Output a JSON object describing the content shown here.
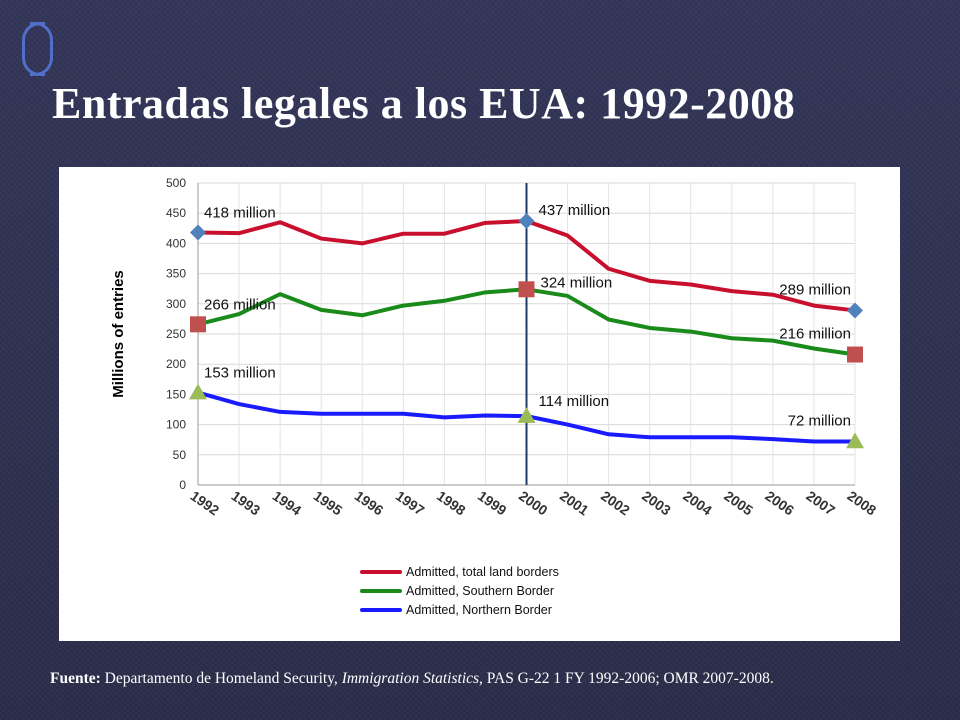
{
  "slide": {
    "title": "Entradas legales a los EUA: 1992-2008",
    "source": {
      "label": "Fuente:",
      "text_before": " Departamento de Homeland Security, ",
      "italic": "Immigration Statistics",
      "text_after": ", PAS G-22 1 FY 1992-2006; OMR 2007-2008."
    }
  },
  "colors": {
    "total": "#c8102e",
    "southern": "#1a8a1a",
    "northern": "#1a1aff",
    "diamond": "#4f81bd",
    "square": "#c0504d",
    "triangle": "#9bbb59",
    "vline": "#1f3a68"
  },
  "chart_data": {
    "type": "line",
    "title": "",
    "xlabel": "",
    "ylabel": "Millions of entries",
    "ylim": [
      0,
      500
    ],
    "yticks": [
      0,
      50,
      100,
      150,
      200,
      250,
      300,
      350,
      400,
      450,
      500
    ],
    "grid": true,
    "legend_position": "bottom",
    "categories": [
      "1992",
      "1993",
      "1994",
      "1995",
      "1996",
      "1997",
      "1998",
      "1999",
      "2000",
      "2001",
      "2002",
      "2003",
      "2004",
      "2005",
      "2006",
      "2007",
      "2008"
    ],
    "series": [
      {
        "name": "Admitted, total land borders",
        "color": "#c8102e",
        "marker": "diamond",
        "values": [
          418,
          417,
          435,
          408,
          400,
          416,
          416,
          434,
          437,
          413,
          358,
          338,
          332,
          321,
          315,
          297,
          289
        ]
      },
      {
        "name": "Admitted, Southern Border",
        "color": "#1a8a1a",
        "marker": "square",
        "values": [
          266,
          283,
          316,
          290,
          281,
          297,
          305,
          319,
          324,
          313,
          274,
          260,
          254,
          243,
          239,
          226,
          216
        ]
      },
      {
        "name": "Admitted, Northern Border",
        "color": "#1a1aff",
        "marker": "triangle",
        "values": [
          153,
          134,
          121,
          118,
          118,
          118,
          112,
          115,
          114,
          100,
          84,
          79,
          79,
          79,
          76,
          72,
          72
        ]
      }
    ],
    "vertical_line_at": "2000",
    "annotations": [
      {
        "text": "418 million",
        "series": 0,
        "index": 0
      },
      {
        "text": "437 million",
        "series": 0,
        "index": 8
      },
      {
        "text": "289 million",
        "series": 0,
        "index": 16
      },
      {
        "text": "266 million",
        "series": 1,
        "index": 0
      },
      {
        "text": "324 million",
        "series": 1,
        "index": 8
      },
      {
        "text": "216 million",
        "series": 1,
        "index": 16
      },
      {
        "text": "153 million",
        "series": 2,
        "index": 0
      },
      {
        "text": "114 million",
        "series": 2,
        "index": 8
      },
      {
        "text": "72 million",
        "series": 2,
        "index": 16
      }
    ]
  }
}
